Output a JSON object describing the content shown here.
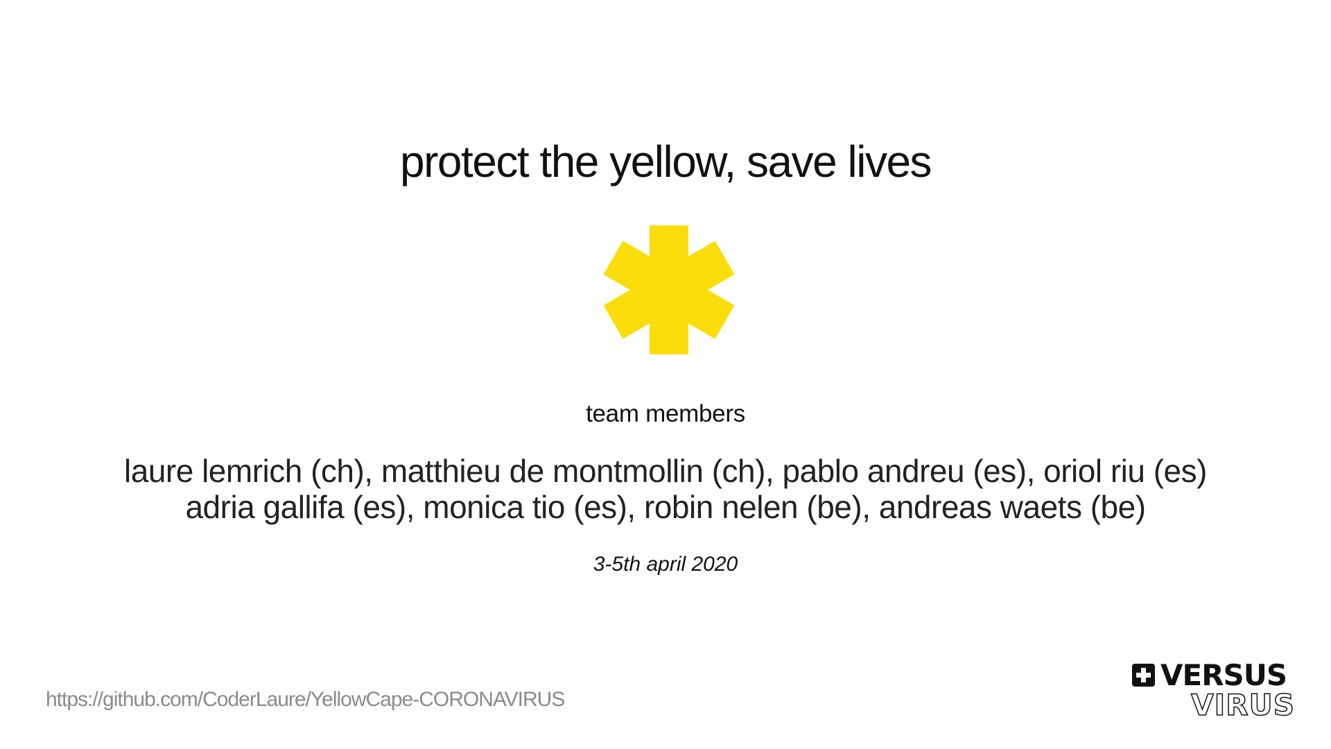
{
  "slide": {
    "title": "protect the yellow, save lives",
    "emblem": {
      "icon": "yellow-asterisk-icon",
      "color": "#FBDD0B"
    },
    "team_heading": "team members",
    "members_line1": "laure lemrich (ch), matthieu de montmollin (ch), pablo andreu (es), oriol riu (es)",
    "members_line2": "adria gallifa (es), monica tio (es), robin nelen (be), andreas waets (be)",
    "dates": "3-5th april 2020",
    "url": "https://github.com/CoderLaure/YellowCape-CORONAVIRUS",
    "logo": {
      "icon": "swiss-cross-icon",
      "word_top": "VERSUS",
      "word_bottom": "VIRUS"
    }
  }
}
